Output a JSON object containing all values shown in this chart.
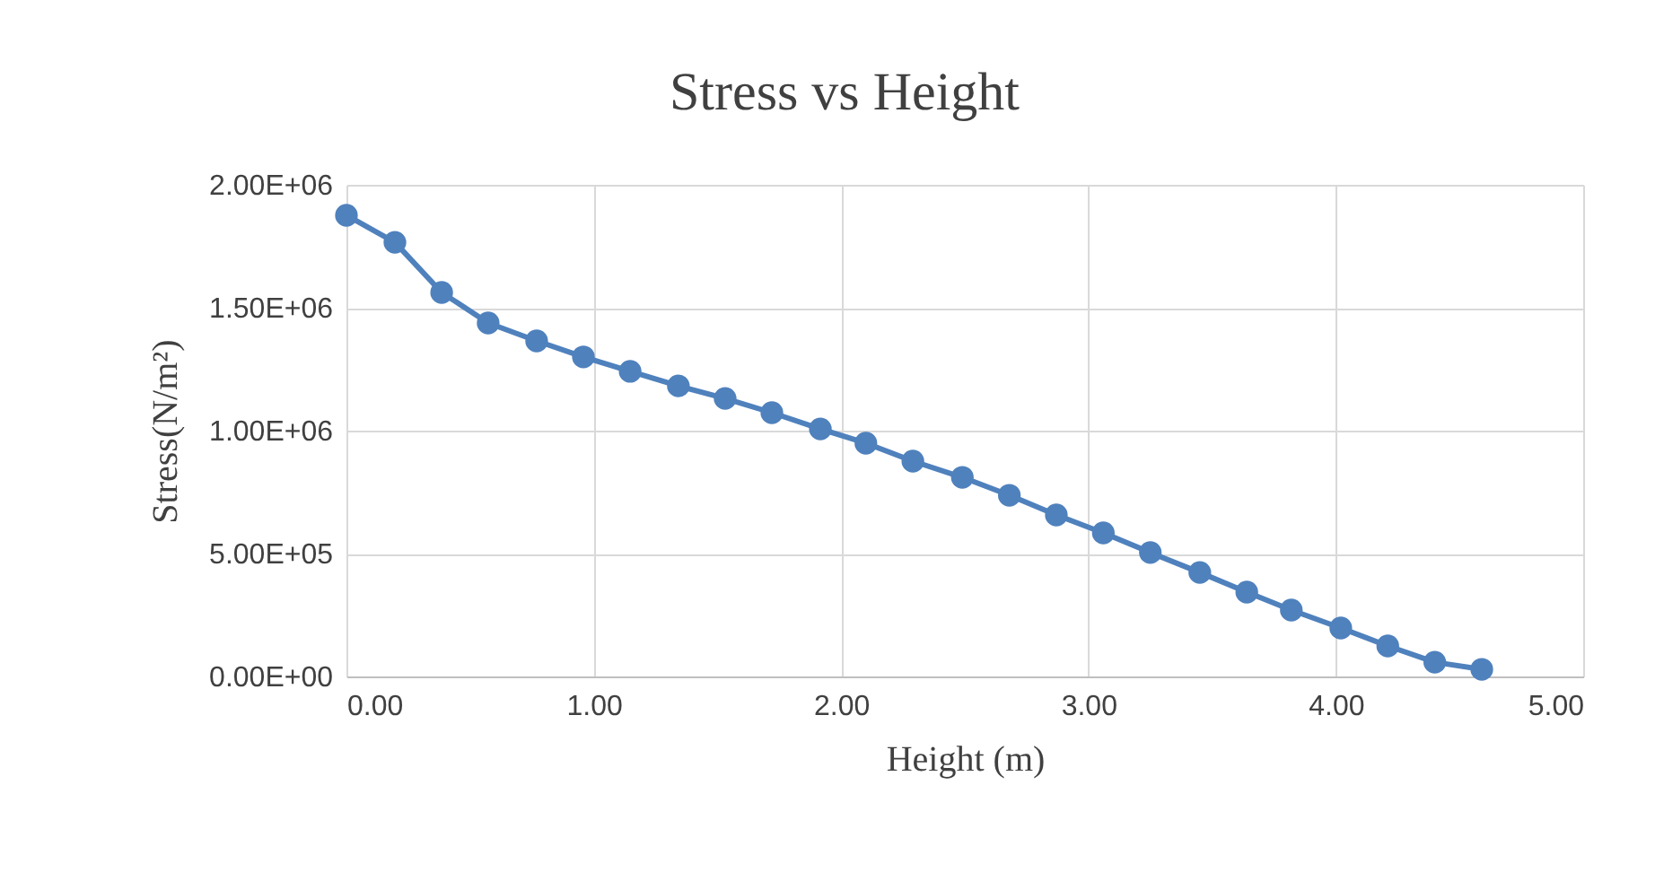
{
  "chart_data": {
    "type": "line",
    "title": "Stress vs Height",
    "xlabel": "Height (m)",
    "ylabel": "Stress(N/m²)",
    "x": [
      0,
      0.196,
      0.385,
      0.573,
      0.769,
      0.958,
      1.147,
      1.342,
      1.531,
      1.72,
      1.916,
      2.1,
      2.29,
      2.49,
      2.68,
      2.87,
      3.06,
      3.25,
      3.45,
      3.64,
      3.82,
      4.02,
      4.21,
      4.4,
      4.59
    ],
    "series": [
      {
        "color": "#4f81bd",
        "values": [
          1876000,
          1766000,
          1562000,
          1438000,
          1365000,
          1300000,
          1241000,
          1182000,
          1131000,
          1073000,
          1007000,
          949000,
          876000,
          810000,
          737000,
          657000,
          584000,
          504000,
          423000,
          343000,
          270000,
          197000,
          124000,
          58000,
          29000
        ]
      }
    ],
    "xlim": [
      0,
      5
    ],
    "xticks": [
      {
        "value": 0,
        "label": "0.00"
      },
      {
        "value": 1,
        "label": "1.00"
      },
      {
        "value": 2,
        "label": "2.00"
      },
      {
        "value": 3,
        "label": "3.00"
      },
      {
        "value": 4,
        "label": "4.00"
      },
      {
        "value": 5,
        "label": "5.00"
      }
    ],
    "ylim": [
      0,
      2000000
    ],
    "yticks": [
      {
        "value": 0,
        "label": "0.00E+00"
      },
      {
        "value": 500000,
        "label": "5.00E+05"
      },
      {
        "value": 1000000,
        "label": "1.00E+06"
      },
      {
        "value": 1500000,
        "label": "1.50E+06"
      },
      {
        "value": 2000000,
        "label": "2.00E+06"
      }
    ],
    "grid": true,
    "marker": "circle",
    "line_style": "solid"
  }
}
